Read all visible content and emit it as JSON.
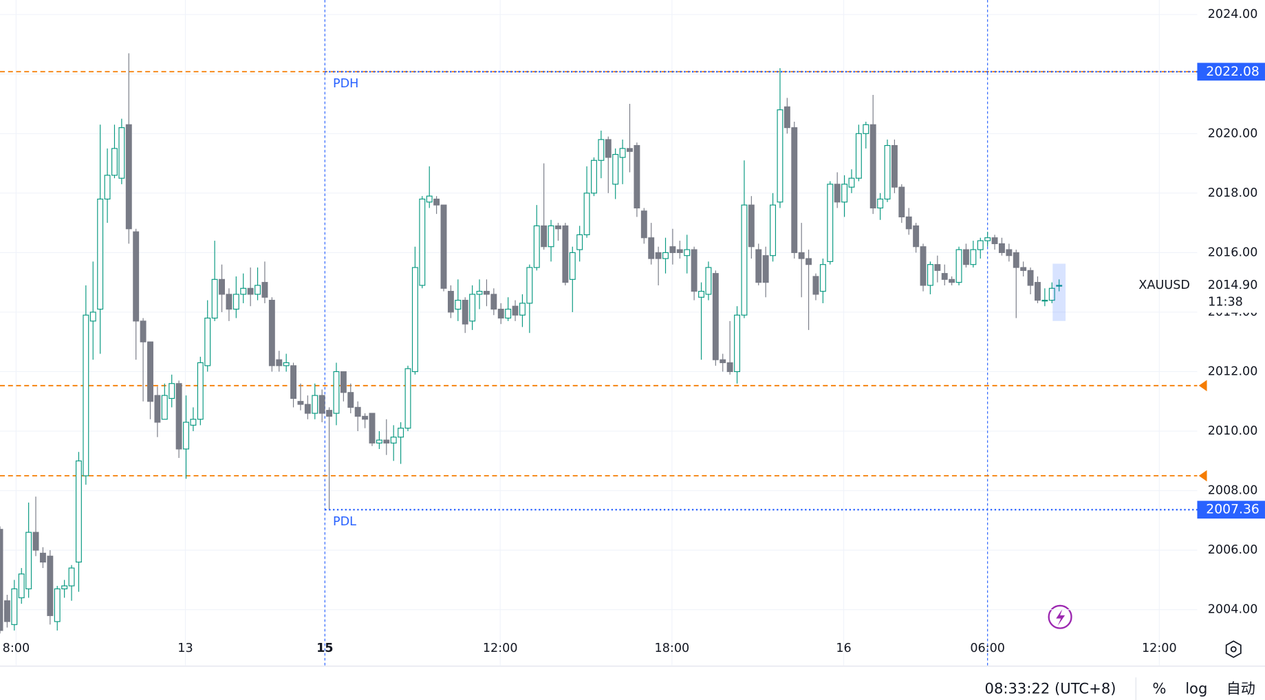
{
  "chart_data": {
    "type": "candlestick",
    "symbol": "XAUUSD",
    "up_color": "#089981",
    "down_color": "#787b86",
    "open": [
      2006.7,
      2004.3,
      2003.5,
      2004.4,
      2004.7,
      2006.6,
      2005.9,
      2005.8,
      2003.6,
      2004.7,
      2004.8,
      2005.6,
      2008.5,
      2013.7,
      2014.1,
      2017.8,
      2018.6,
      2018.5,
      2020.3,
      2016.7,
      2013.7,
      2013,
      2011.2,
      2010.4,
      2011.1,
      2011.6,
      2009.4,
      2010.2,
      2010.4,
      2012.2,
      2013.8,
      2015.1,
      2014.6,
      2014.1,
      2014.6,
      2014.8,
      2014.6,
      2015,
      2014.4,
      2012.4,
      2012.2,
      2012.2,
      2011,
      2010.9,
      2010.6,
      2011.2,
      2010.7,
      2010.6,
      2012,
      2011.3,
      2010.8,
      2010.5,
      2010.6,
      2009.6,
      2009.7,
      2009.6,
      2009.8,
      2010.1,
      2012,
      2014.9,
      2017.7,
      2017.8,
      2017.6,
      2014.7,
      2014.1,
      2014.4,
      2013.7,
      2014.6,
      2014.7,
      2014.6,
      2014.1,
      2013.8,
      2014.2,
      2013.9,
      2014.3,
      2015.5,
      2016.9,
      2016.2,
      2016.9,
      2016.9,
      2015.1,
      2016.1,
      2016.6,
      2018,
      2019.1,
      2019.8,
      2018.3,
      2019.2,
      2019.5,
      2019.6,
      2017.4,
      2016.5,
      2016,
      2015.8,
      2016.2,
      2016.1,
      2015.9,
      2016.1,
      2014.5,
      2014.6,
      2015.3,
      2012.4,
      2012.3,
      2012,
      2013.9,
      2017.6,
      2016.1,
      2015.9,
      2015.9,
      2017.7,
      2020.9,
      2020.2,
      2016,
      2015.8,
      2015.2,
      2014.7,
      2015.7,
      2018.3,
      2017.7,
      2018.2,
      2018.5,
      2020,
      2020.3,
      2017.5,
      2017.8,
      2019.6,
      2018.2,
      2017.2,
      2016.9,
      2016.2,
      2014.9,
      2015.6,
      2015.3,
      2015.1,
      2015,
      2016.1,
      2015.6,
      2016.1,
      2016.4,
      2016.5,
      2016.3,
      2016.1,
      2016,
      2015.5,
      2015.4,
      2015,
      2014.4,
      2014.4,
      2014.9
    ],
    "high": [
      2006.8,
      2004.5,
      2005,
      2005.4,
      2007.6,
      2007.8,
      2006.1,
      2006,
      2004.8,
      2005,
      2005.5,
      2009.3,
      2014.9,
      2015.7,
      2020.3,
      2019.5,
      2020.3,
      2020.5,
      2022.7,
      2016.8,
      2013.8,
      2013,
      2011.5,
      2011.6,
      2011.9,
      2011.7,
      2011.2,
      2010.8,
      2012.5,
      2014.4,
      2016.4,
      2015.6,
      2014.8,
      2015.2,
      2015.3,
      2015.5,
      2015.5,
      2015.7,
      2014.5,
      2012.7,
      2012.6,
      2012.3,
      2011.6,
      2011.2,
      2011.6,
      2011.4,
      2010.8,
      2012.3,
      2012,
      2011.6,
      2011,
      2010.6,
      2010.6,
      2010,
      2010.4,
      2010.2,
      2010.3,
      2012.2,
      2016.2,
      2017.9,
      2018.9,
      2017.9,
      2017.6,
      2014.9,
      2015.1,
      2014.5,
      2014.9,
      2015.1,
      2015.1,
      2014.8,
      2014.3,
      2014.5,
      2014.4,
      2014.6,
      2015.6,
      2017.6,
      2019,
      2017.1,
      2017,
      2017,
      2016.2,
      2016.9,
      2018.9,
      2019.2,
      2020.1,
      2019.9,
      2019.5,
      2019.8,
      2021,
      2019.7,
      2017.5,
      2017,
      2016.2,
      2016.5,
      2016.8,
      2016.4,
      2016.6,
      2016.2,
      2015,
      2015.7,
      2015.4,
      2012.6,
      2013.7,
      2014.2,
      2019.1,
      2017.9,
      2016.3,
      2016.2,
      2018,
      2022.2,
      2021.2,
      2020.4,
      2017,
      2016.1,
      2015.3,
      2015.8,
      2018.4,
      2018.7,
      2018.6,
      2018.8,
      2020.3,
      2020.4,
      2021.3,
      2018,
      2019.8,
      2019.8,
      2018.3,
      2017.5,
      2017,
      2016.3,
      2015.7,
      2015.9,
      2015.6,
      2015.2,
      2016.2,
      2016.3,
      2016.4,
      2016.5,
      2016.7,
      2016.6,
      2016.5,
      2016.3,
      2016.1,
      2015.7,
      2015.5,
      2015.2,
      2014.8,
      2015,
      2015.1
    ],
    "low": [
      2003.2,
      2003.4,
      2003.3,
      2004.2,
      2004.4,
      2005.8,
      2005.4,
      2003.5,
      2003.3,
      2004.4,
      2004.3,
      2004.6,
      2008.2,
      2012.4,
      2012.6,
      2017,
      2018.5,
      2018.3,
      2016.3,
      2012.4,
      2011,
      2010.4,
      2009.8,
      2010.4,
      2010.8,
      2009.1,
      2008.4,
      2010,
      2010.2,
      2012,
      2013.7,
      2014,
      2013.7,
      2013.8,
      2014.3,
      2014.2,
      2014.4,
      2014.3,
      2012,
      2012,
      2012,
      2010.8,
      2010.7,
      2010.4,
      2010.4,
      2010.3,
      2007.36,
      2010.2,
      2011,
      2010.6,
      2010,
      2010.1,
      2009.5,
      2009.4,
      2009.2,
      2009,
      2008.9,
      2010,
      2011.9,
      2014.8,
      2017.5,
      2017.3,
      2014.7,
      2013.8,
      2013.7,
      2013.3,
      2013.4,
      2014.1,
      2014.2,
      2013.9,
      2013.6,
      2013.7,
      2013.7,
      2013.5,
      2013.3,
      2015.4,
      2016.1,
      2015.7,
      2016.4,
      2014.9,
      2014,
      2015.7,
      2016.5,
      2017.9,
      2018.5,
      2018,
      2017.8,
      2018.3,
      2018.7,
      2017.2,
      2016.3,
      2015.6,
      2014.9,
      2015.3,
      2015.6,
      2015.8,
      2015.3,
      2014.4,
      2012.4,
      2014.4,
      2012.2,
      2012,
      2011.9,
      2011.6,
      2013.8,
      2015.8,
      2014.9,
      2014.5,
      2015.7,
      2017.5,
      2020,
      2015.8,
      2014.5,
      2013.4,
      2014.4,
      2014.3,
      2015.6,
      2017.5,
      2017.2,
      2018,
      2018.4,
      2019.5,
      2017.3,
      2017.1,
      2017.7,
      2018,
      2017,
      2016.6,
      2016,
      2014.7,
      2014.6,
      2015,
      2014.9,
      2014.9,
      2014.9,
      2015.5,
      2015.5,
      2015.8,
      2016.2,
      2016.1,
      2015.9,
      2015.7,
      2013.8,
      2015.2,
      2014.6,
      2014.3,
      2014.2,
      2014.3,
      2014.7
    ],
    "close": [
      2003.3,
      2003.6,
      2004.7,
      2005.2,
      2006.6,
      2006,
      2005.6,
      2003.8,
      2004.7,
      2004.8,
      2005.4,
      2009,
      2013.9,
      2014,
      2017.8,
      2018.6,
      2019.5,
      2020.2,
      2016.8,
      2013.7,
      2013,
      2011,
      2010.3,
      2011.2,
      2011.6,
      2009.4,
      2010.3,
      2010.4,
      2012.3,
      2013.8,
      2015.1,
      2014.6,
      2014.1,
      2014.6,
      2014.8,
      2014.6,
      2014.9,
      2014.5,
      2012.2,
      2012.2,
      2012.3,
      2011.1,
      2010.9,
      2010.6,
      2011.2,
      2010.6,
      2010.5,
      2012,
      2011.3,
      2010.8,
      2010.5,
      2010.4,
      2009.6,
      2009.7,
      2009.6,
      2009.8,
      2010.1,
      2012.1,
      2015.5,
      2017.8,
      2017.9,
      2017.6,
      2014.8,
      2014,
      2014.4,
      2013.6,
      2014.6,
      2014.7,
      2014.6,
      2014.1,
      2013.8,
      2014.1,
      2013.9,
      2014.3,
      2015.5,
      2016.9,
      2016.2,
      2016.9,
      2016.8,
      2015,
      2016,
      2016.6,
      2018,
      2019.1,
      2019.8,
      2019.2,
      2019.3,
      2019.5,
      2019.4,
      2017.5,
      2016.5,
      2015.8,
      2015.8,
      2016,
      2016,
      2016,
      2016.1,
      2014.7,
      2014.7,
      2015.5,
      2012.4,
      2012.3,
      2012,
      2013.9,
      2017.6,
      2016.2,
      2015,
      2015,
      2017.6,
      2020.8,
      2020.2,
      2016,
      2015.8,
      2015.6,
      2014.6,
      2015.6,
      2018.3,
      2017.7,
      2018.3,
      2018.5,
      2020,
      2020.3,
      2017.5,
      2017.8,
      2019.6,
      2018.2,
      2017.2,
      2016.8,
      2016.2,
      2014.9,
      2015.6,
      2015.4,
      2015.1,
      2015,
      2016.1,
      2015.6,
      2016.1,
      2016.4,
      2016.5,
      2016.3,
      2016,
      2015.9,
      2015.5,
      2015.4,
      2014.9,
      2014.4,
      2014.4,
      2014.8,
      2014.9
    ],
    "xlim": [
      0,
      167.3
    ],
    "ylim": [
      2002.13,
      2024.49
    ],
    "xticks": [
      {
        "value": 2.25,
        "label": "8:00"
      },
      {
        "value": 25.9,
        "label": "13"
      },
      {
        "value": 45.4,
        "label": "15"
      },
      {
        "value": 69.9,
        "label": "12:00"
      },
      {
        "value": 93.9,
        "label": "18:00"
      },
      {
        "value": 117.9,
        "label": "16"
      },
      {
        "value": 138,
        "label": "06:00"
      },
      {
        "value": 162,
        "label": "12:00"
      }
    ],
    "yticks": [
      {
        "value": 2004,
        "label": "2004.00"
      },
      {
        "value": 2006,
        "label": "2006.00"
      },
      {
        "value": 2008,
        "label": "2008.00"
      },
      {
        "value": 2010,
        "label": "2010.00"
      },
      {
        "value": 2012,
        "label": "2012.00"
      },
      {
        "value": 2014,
        "label": "2014.00"
      },
      {
        "value": 2016,
        "label": "2016.00"
      },
      {
        "value": 2018,
        "label": "2018.00"
      },
      {
        "value": 2020,
        "label": "2020.00"
      },
      {
        "value": 2022,
        "label": "2022.00"
      },
      {
        "value": 2024,
        "label": "2024.00"
      }
    ],
    "grid": true,
    "level_color": "#f57c00",
    "levels": [
      2022.08,
      2011.53,
      2008.5
    ],
    "prev_day_color": "#2962ff",
    "prev_day": [
      {
        "name": "PDH",
        "value": 2022.08,
        "label": "2022.08"
      },
      {
        "name": "PDL",
        "value": 2007.36,
        "label": "2007.36"
      }
    ],
    "last_price": {
      "value": 2014.9,
      "label": "2014.90"
    },
    "countdown": "11:38"
  },
  "status_bar": {
    "time": "08:33:22 (UTC+8)",
    "buttons": [
      "%",
      "log",
      "自动"
    ]
  }
}
